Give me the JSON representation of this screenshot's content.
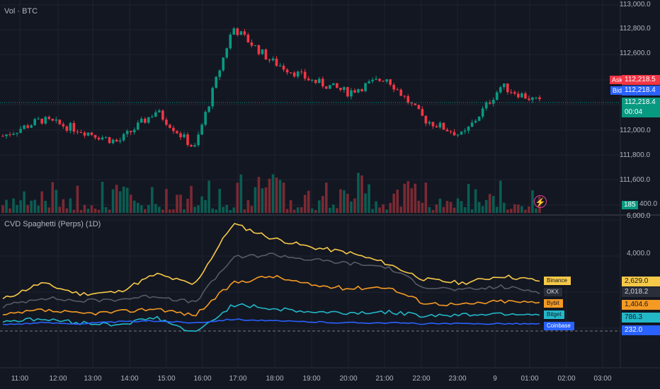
{
  "top_pane": {
    "title": "Vol · BTC",
    "price_axis": [
      "113,000.0",
      "112,800.0",
      "112,600.0",
      "112,000.0",
      "111,800.0",
      "111,600.0",
      "400.0"
    ],
    "ask": {
      "label": "Ask",
      "value": "112,218.5",
      "color": "#f23645"
    },
    "bid": {
      "label": "Bid",
      "value": "112,218.4",
      "color": "#2962ff"
    },
    "last": {
      "value": "112,218.4",
      "countdown": "00:04",
      "color": "#089981"
    },
    "volume_badge": "185",
    "alert_icon": "lightning-icon"
  },
  "bottom_pane": {
    "title": "CVD Spaghetti (Perps) (1D)",
    "axis": [
      "6,000.0",
      "4,000.0"
    ],
    "series": [
      {
        "name": "Binance",
        "value": "2,629.0",
        "color": "#f7c948"
      },
      {
        "name": "OKX",
        "value": "2,018.2",
        "color": "#3a3d47"
      },
      {
        "name": "Bybit",
        "value": "1,404.6",
        "color": "#f59a23"
      },
      {
        "name": "Bitget",
        "value": "786.3",
        "color": "#22b8c8"
      },
      {
        "name": "Coinbase",
        "value": "232.0",
        "color": "#2962ff"
      }
    ]
  },
  "time_axis": [
    "11:00",
    "12:00",
    "13:00",
    "14:00",
    "15:00",
    "16:00",
    "17:00",
    "18:00",
    "19:00",
    "20:00",
    "21:00",
    "22:00",
    "23:00",
    "9",
    "01:00",
    "02:00",
    "03:00"
  ],
  "chart_data": {
    "type": "line",
    "categories": [
      "11:00",
      "12:00",
      "13:00",
      "14:00",
      "15:00",
      "16:00",
      "17:00",
      "18:00",
      "19:00",
      "20:00",
      "21:00",
      "22:00",
      "23:00",
      "9",
      "01:00"
    ],
    "price_series": [
      111950,
      112080,
      112000,
      111900,
      112150,
      111850,
      112820,
      112550,
      112400,
      112300,
      112420,
      112080,
      111950,
      112350,
      112218
    ],
    "cvd_series": {
      "Binance": [
        1600,
        2500,
        1900,
        2000,
        3000,
        2400,
        5800,
        5000,
        4500,
        4200,
        3600,
        2700,
        2500,
        2900,
        2629
      ],
      "OKX": [
        1200,
        1700,
        1500,
        1600,
        1800,
        1400,
        3900,
        4100,
        3800,
        3600,
        3400,
        2300,
        2100,
        2300,
        2018
      ],
      "Bybit": [
        700,
        1000,
        800,
        900,
        1100,
        700,
        2500,
        2900,
        2400,
        2200,
        2300,
        1400,
        1300,
        1500,
        1404
      ],
      "Bitget": [
        400,
        500,
        300,
        200,
        600,
        -300,
        1300,
        1100,
        900,
        850,
        900,
        700,
        750,
        820,
        786
      ],
      "Coinbase": [
        200,
        300,
        250,
        350,
        400,
        300,
        500,
        400,
        350,
        300,
        300,
        250,
        240,
        260,
        232
      ]
    }
  }
}
